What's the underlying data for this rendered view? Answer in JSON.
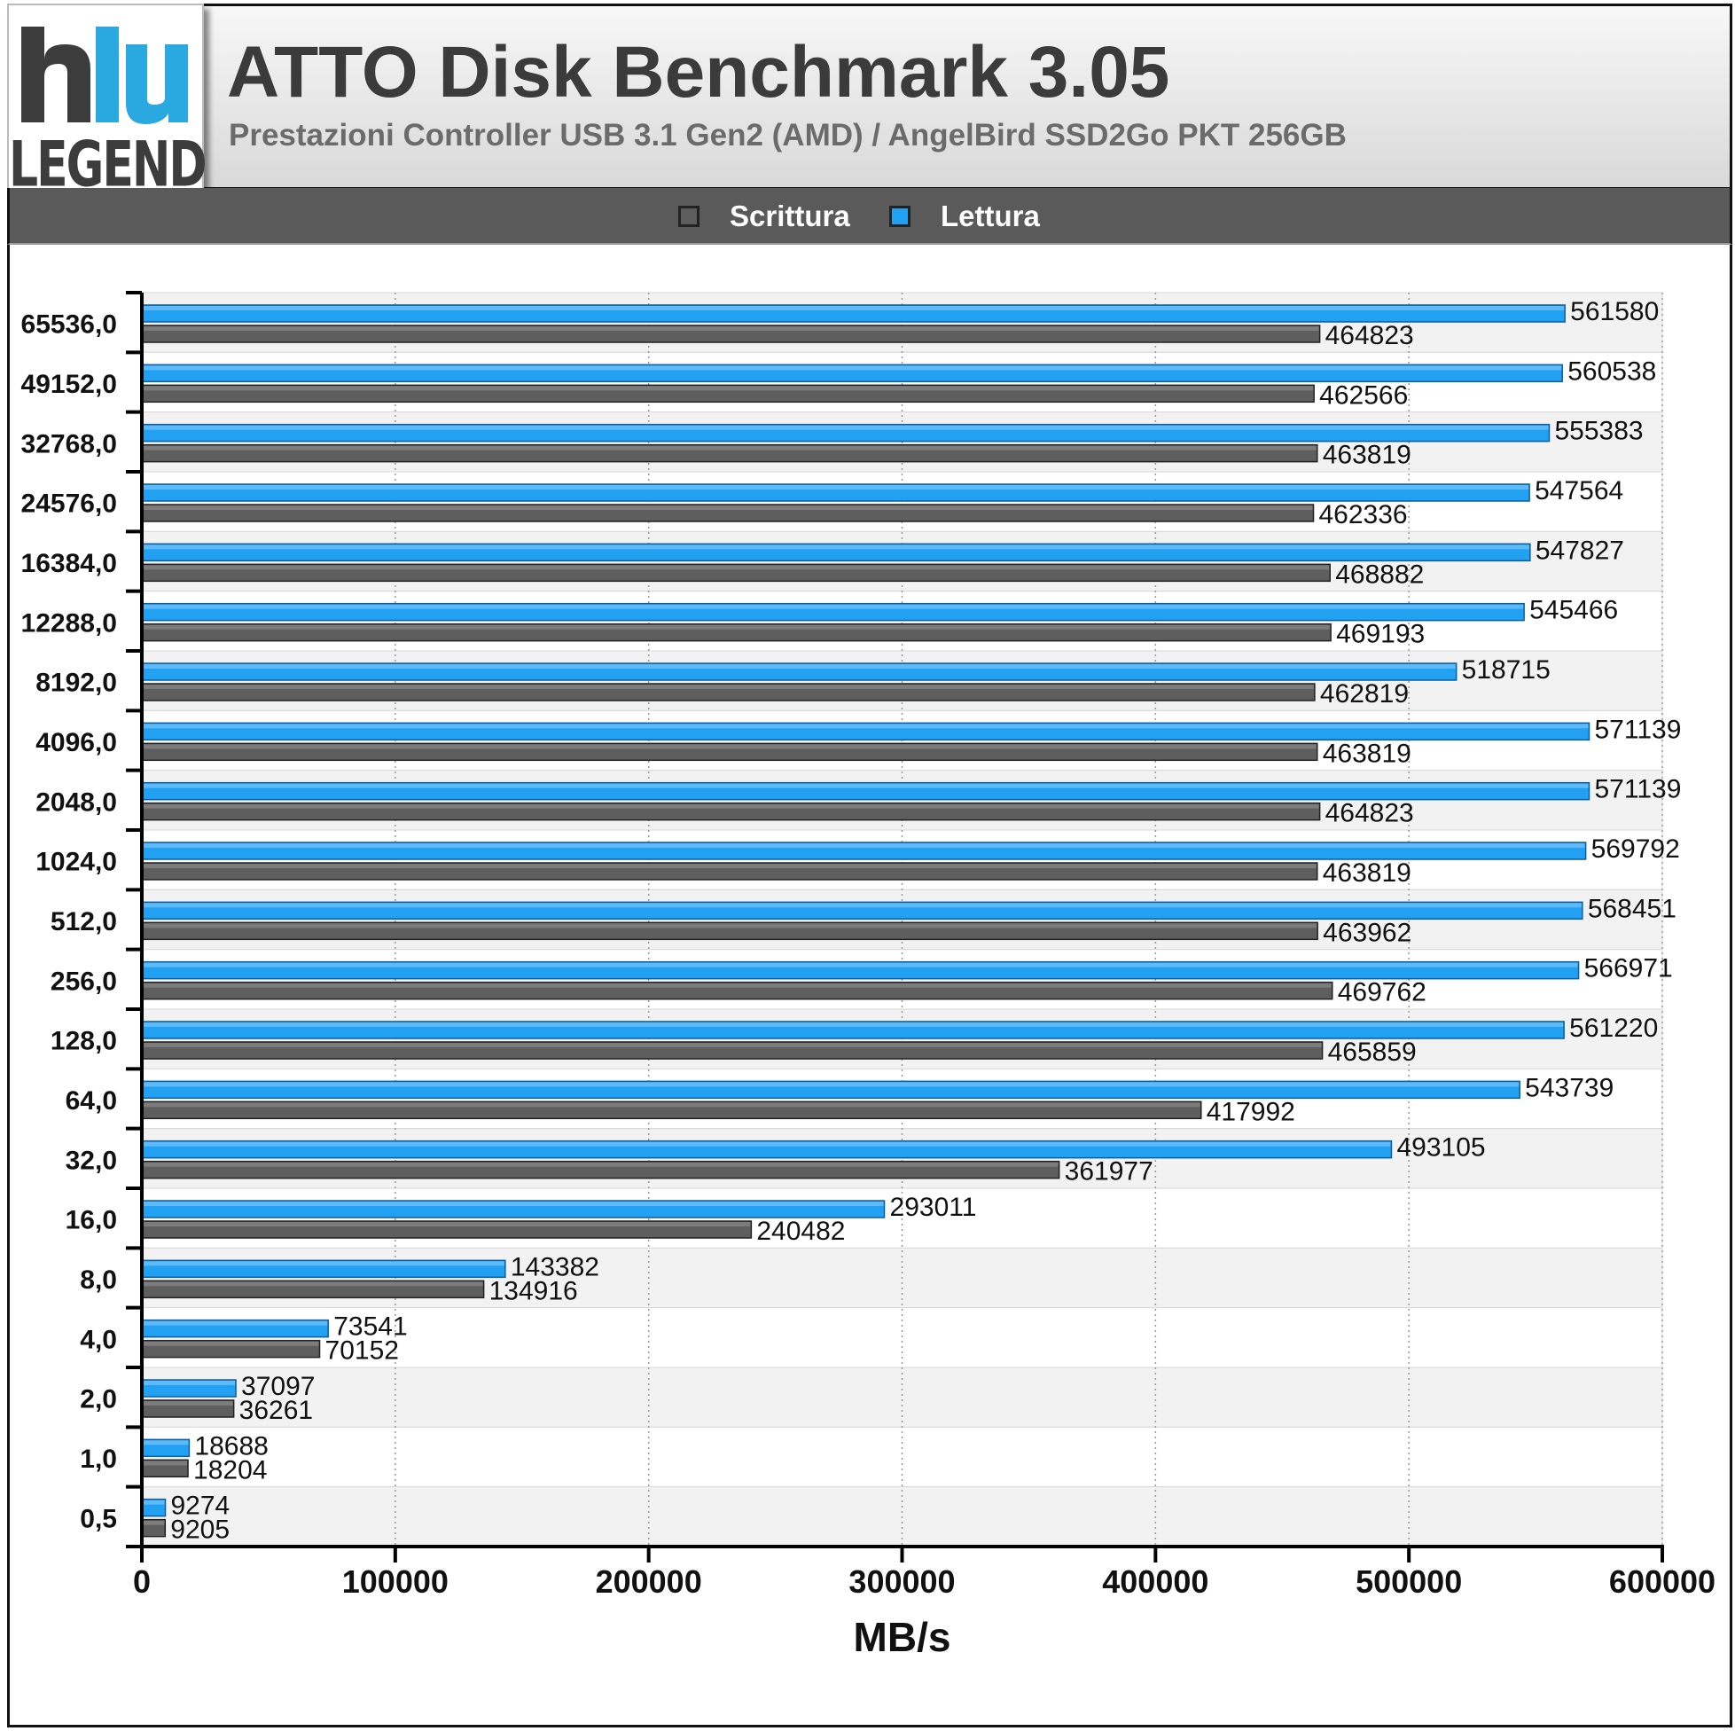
{
  "header": {
    "logo_text": "LEGEND",
    "title": "ATTO Disk Benchmark 3.05",
    "subtitle": "Prestazioni Controller USB 3.1 Gen2 (AMD) / AngelBird SSD2Go PKT 256GB"
  },
  "colors": {
    "write": "#5e5e5e",
    "read": "#22a0f2",
    "logo_blue": "#2aa8e0",
    "logo_dark": "#3c3c3c"
  },
  "chart_data": {
    "type": "bar",
    "orientation": "horizontal",
    "xlabel": "MB/s",
    "xlim": [
      0,
      600000
    ],
    "xticks": [
      "0",
      "100000",
      "200000",
      "300000",
      "400000",
      "500000",
      "600000"
    ],
    "grid": "vertical dotted",
    "legend_position": "top",
    "categories": [
      "65536,0",
      "49152,0",
      "32768,0",
      "24576,0",
      "16384,0",
      "12288,0",
      "8192,0",
      "4096,0",
      "2048,0",
      "1024,0",
      "512,0",
      "256,0",
      "128,0",
      "64,0",
      "32,0",
      "16,0",
      "8,0",
      "4,0",
      "2,0",
      "1,0",
      "0,5"
    ],
    "series": [
      {
        "name": "Scrittura",
        "color": "#5e5e5e",
        "values": [
          464823,
          462566,
          463819,
          462336,
          468882,
          469193,
          462819,
          463819,
          464823,
          463819,
          463962,
          469762,
          465859,
          417992,
          361977,
          240482,
          134916,
          70152,
          36261,
          18204,
          9205
        ]
      },
      {
        "name": "Lettura",
        "color": "#22a0f2",
        "values": [
          561580,
          560538,
          555383,
          547564,
          547827,
          545466,
          518715,
          571139,
          571139,
          569792,
          568451,
          566971,
          561220,
          543739,
          493105,
          293011,
          143382,
          73541,
          37097,
          18688,
          9274
        ]
      }
    ]
  }
}
